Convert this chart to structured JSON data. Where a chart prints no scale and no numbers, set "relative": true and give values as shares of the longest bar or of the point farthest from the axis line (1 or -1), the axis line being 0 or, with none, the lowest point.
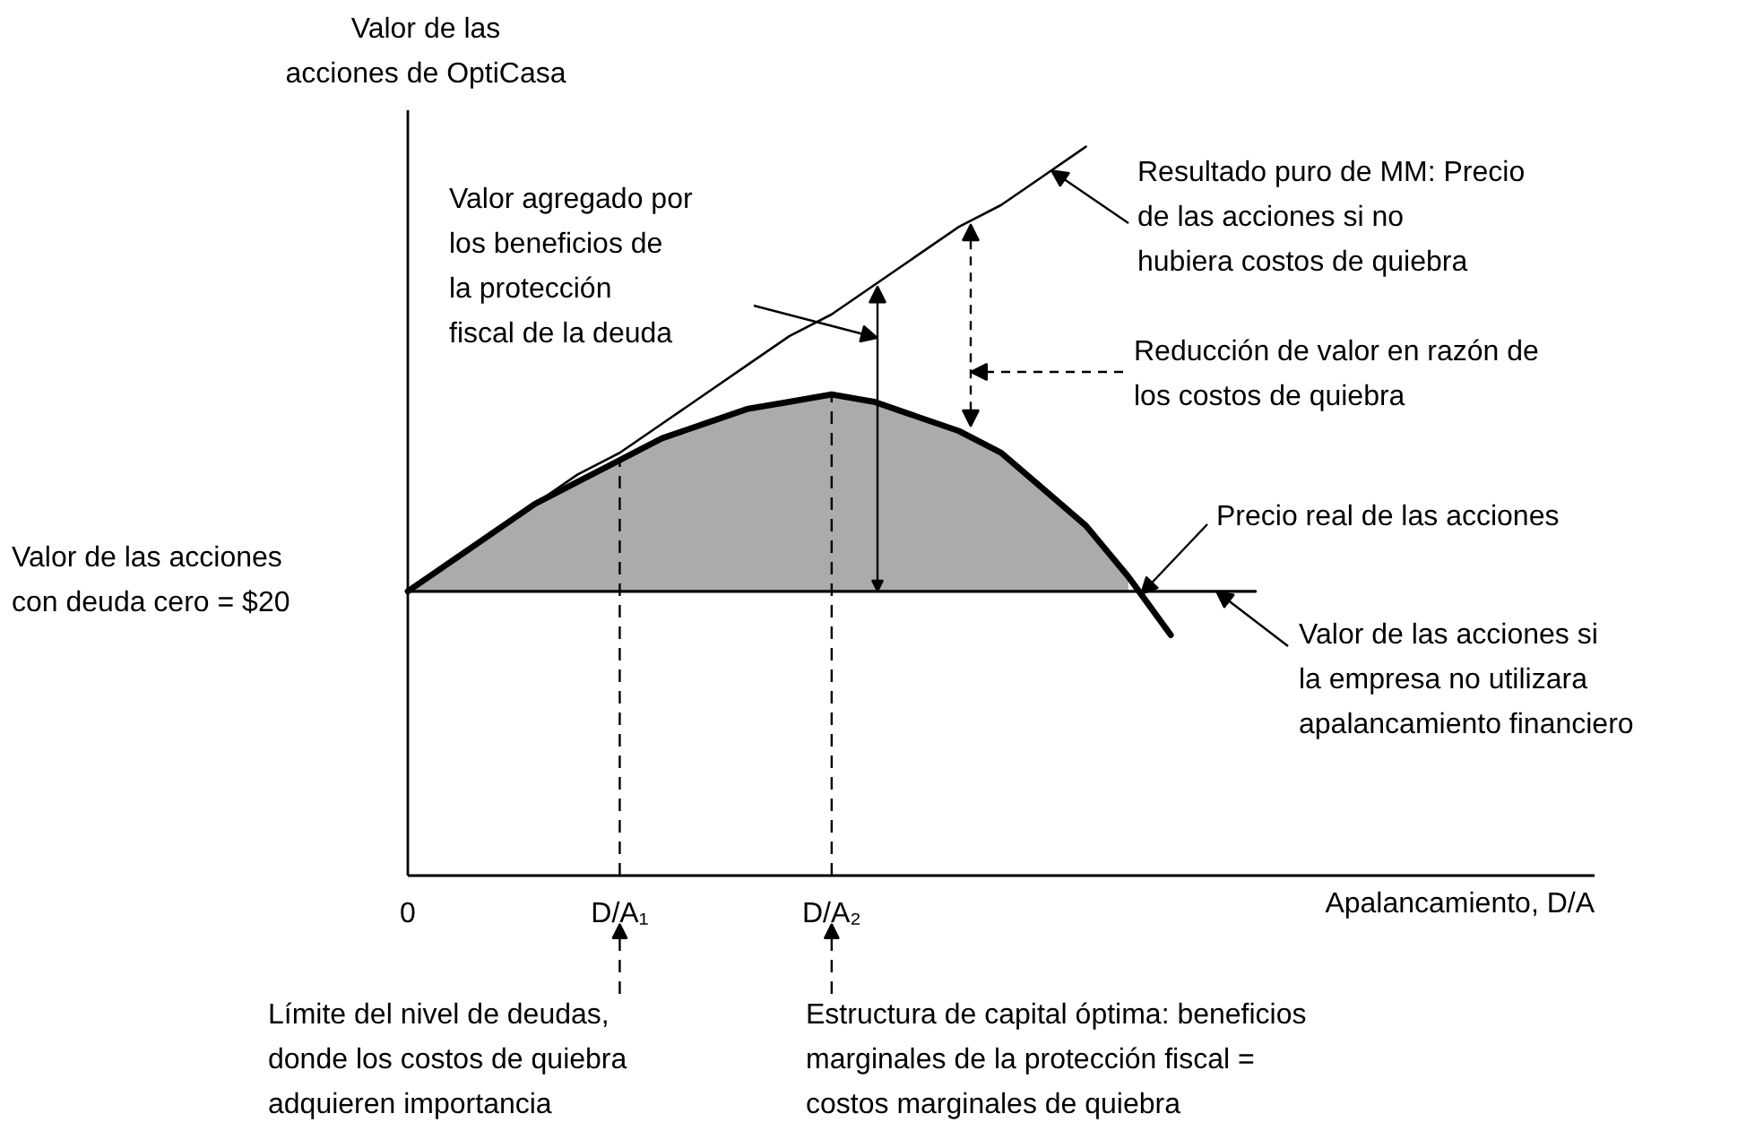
{
  "chart_data": {
    "type": "line",
    "relative": true,
    "grid": false,
    "tick_labels": "x",
    "xlabel": "Apalancamiento, D/A",
    "ylabel": "Valor de las acciones de OptiCasa",
    "categories": [
      "0",
      null,
      null,
      null,
      null,
      "D/A₁",
      null,
      null,
      null,
      null,
      "D/A₂",
      null,
      null,
      null,
      null,
      null,
      null,
      null,
      null,
      null,
      null,
      null,
      null,
      null,
      null,
      null,
      null,
      null,
      null
    ],
    "series": [
      {
        "color": "#000000",
        "values": [
          0.39,
          0.43,
          0.47,
          0.51,
          0.55,
          0.58,
          0.62,
          0.66,
          0.7,
          0.74,
          0.77,
          0.81,
          0.85,
          0.89,
          0.92,
          0.96,
          1.0,
          null,
          null,
          null,
          null,
          null,
          null,
          null,
          null,
          null,
          null,
          null,
          null
        ]
      },
      {
        "color": "#000000",
        "values": [
          0.39,
          0.43,
          0.47,
          0.51,
          0.54,
          0.57,
          0.6,
          0.62,
          0.64,
          0.65,
          0.66,
          0.65,
          0.63,
          0.61,
          0.58,
          0.53,
          0.48,
          0.41,
          0.33,
          null,
          null,
          null,
          null,
          null,
          null,
          null,
          null,
          null,
          null
        ],
        "lower": [
          0.39,
          0.39,
          0.39,
          0.39,
          0.39,
          0.39,
          0.39,
          0.39,
          0.39,
          0.39,
          0.39,
          0.39,
          0.39,
          0.39,
          0.39,
          0.39,
          0.39,
          0.39,
          null,
          null,
          null,
          null,
          null,
          null,
          null,
          null,
          null,
          null,
          null
        ],
        "upper": [
          0.39,
          0.43,
          0.47,
          0.51,
          0.54,
          0.57,
          0.6,
          0.62,
          0.64,
          0.65,
          0.66,
          0.65,
          0.63,
          0.61,
          0.58,
          0.53,
          0.48,
          0.41,
          null,
          null,
          null,
          null,
          null,
          null,
          null,
          null,
          null,
          null,
          null
        ]
      },
      {
        "color": "#000000",
        "values": [
          0.39,
          0.39,
          0.39,
          0.39,
          0.39,
          0.39,
          0.39,
          0.39,
          0.39,
          0.39,
          0.39,
          0.39,
          0.39,
          0.39,
          0.39,
          0.39,
          0.39,
          0.39,
          0.39,
          0.39,
          0.39,
          null,
          null,
          null,
          null,
          null,
          null,
          null,
          null
        ]
      }
    ],
    "ref_lines": [
      {
        "axis": "x",
        "value": "D/A₁",
        "line_style": "dashed"
      },
      {
        "axis": "x",
        "value": "D/A₂",
        "line_style": "dashed"
      }
    ],
    "annotations": [
      "Valor de las acciones con deuda cero = $20",
      "Resultado puro de MM: Precio de las acciones si no hubiera costos de quiebra",
      "Precio real de las acciones",
      "Valor de las acciones si la empresa no utilizara apalancamiento financiero",
      "Reducción de valor en razón de los costos de quiebra",
      "Valor agregado por los beneficios de la protección fiscal de la deuda",
      "Límite del nivel de deudas, donde los costos de quiebra adquieren importancia",
      "Estructura de capital óptima: beneficios marginales de la protección fiscal = costos marginales de quiebra"
    ]
  }
}
